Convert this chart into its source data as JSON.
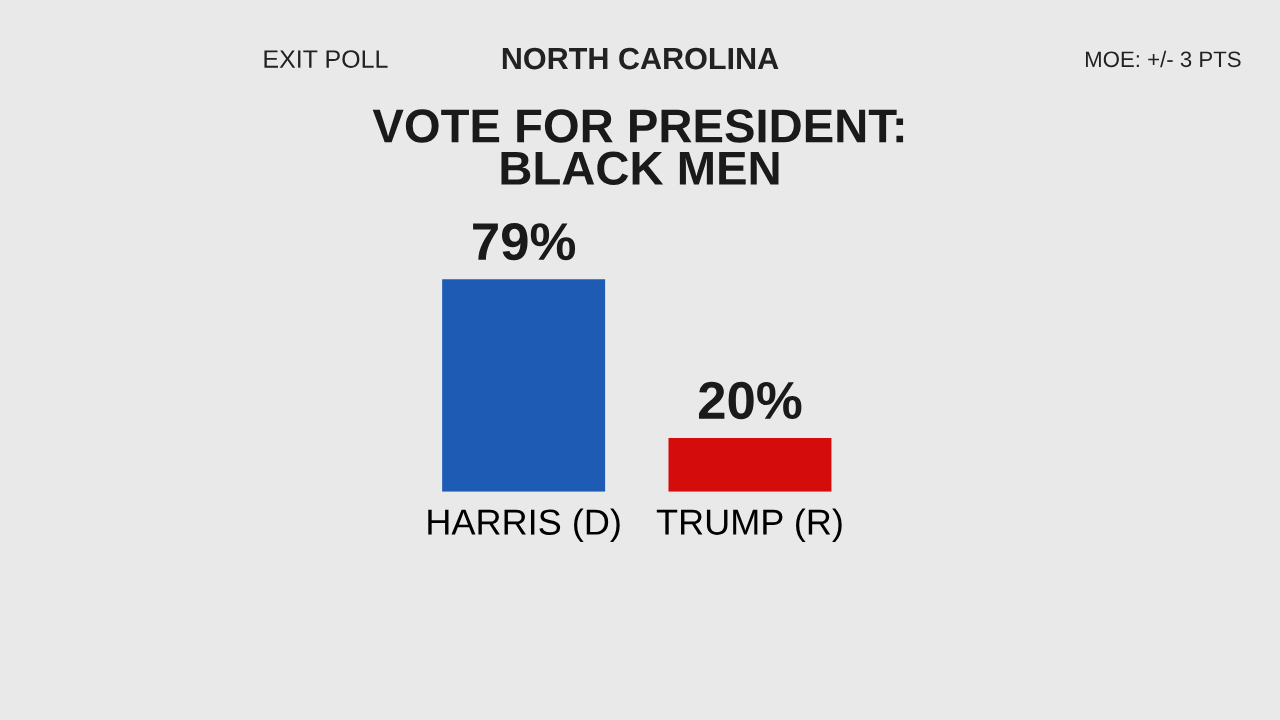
{
  "chart_data": {
    "type": "bar",
    "title": "VOTE FOR PRESIDENT:\nBLACK MEN",
    "subtitle": "NORTH CAROLINA",
    "annotations": [
      "EXIT POLL",
      "MOE: +/- 3 PTS"
    ],
    "categories": [
      "HARRIS (D)",
      "TRUMP (R)"
    ],
    "values": [
      79,
      20
    ],
    "colors": [
      "#1d5bb5",
      "#d50c0c"
    ],
    "value_labels": [
      "79%",
      "20%"
    ],
    "grid": false,
    "legend": false
  }
}
